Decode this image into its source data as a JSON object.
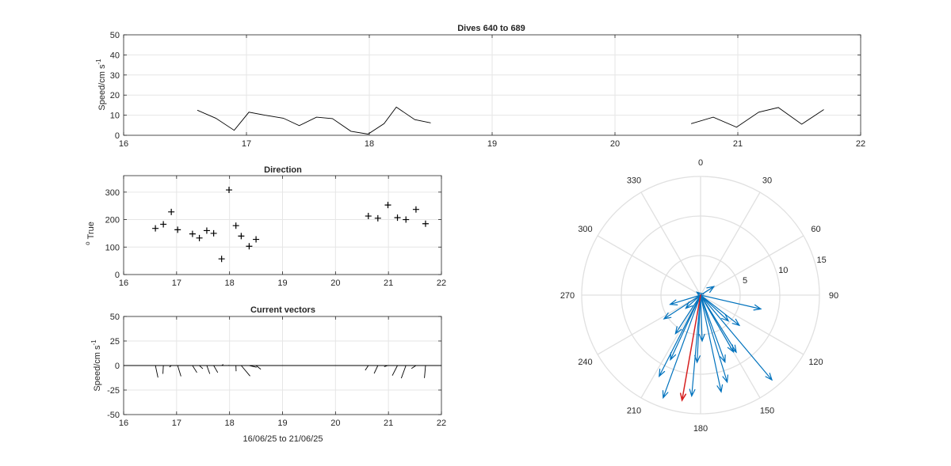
{
  "chart_data": [
    {
      "id": "speed",
      "type": "line",
      "title": "Dives 640 to 689",
      "xlabel": "",
      "ylabel": "Speed/cm s",
      "ylabel_sup": "-1",
      "xlim": [
        16,
        22
      ],
      "ylim": [
        0,
        50
      ],
      "xticks": [
        16,
        17,
        18,
        19,
        20,
        21,
        22
      ],
      "yticks": [
        0,
        10,
        20,
        30,
        40,
        50
      ],
      "grid": true,
      "segments": [
        {
          "x": [
            16.6,
            16.75,
            16.9,
            17.02,
            17.15,
            17.3,
            17.43,
            17.57,
            17.7,
            17.85,
            17.99,
            18.12,
            18.22,
            18.37,
            18.5
          ],
          "y": [
            12.5,
            8.5,
            2.5,
            11.5,
            10,
            8.5,
            4.8,
            9,
            8.3,
            2,
            0.6,
            5.8,
            14,
            7.8,
            6.2
          ]
        },
        {
          "x": [
            20.62,
            20.8,
            20.99,
            21.17,
            21.33,
            21.52,
            21.7
          ],
          "y": [
            5.8,
            9,
            4,
            11.5,
            13.8,
            5.5,
            12.8
          ]
        }
      ]
    },
    {
      "id": "direction",
      "type": "scatter",
      "title": "Direction",
      "xlabel": "",
      "ylabel": "True",
      "ylabel_sup": "o",
      "xlim": [
        16,
        22
      ],
      "ylim": [
        0,
        360
      ],
      "xticks": [
        16,
        17,
        18,
        19,
        20,
        21,
        22
      ],
      "yticks": [
        0,
        100,
        200,
        300
      ],
      "grid": true,
      "marker": "+",
      "x": [
        16.6,
        16.75,
        16.9,
        17.02,
        17.3,
        17.43,
        17.57,
        17.7,
        17.85,
        17.99,
        18.12,
        18.22,
        18.37,
        18.5,
        20.62,
        20.8,
        20.99,
        21.17,
        21.33,
        21.52,
        21.7
      ],
      "y": [
        168,
        183,
        228,
        163,
        148,
        133,
        160,
        150,
        57,
        308,
        178,
        140,
        103,
        128,
        213,
        205,
        253,
        207,
        200,
        237,
        185
      ]
    },
    {
      "id": "vectors",
      "type": "line",
      "title": "Current vectors",
      "xlabel": "16/06/25 to 21/06/25",
      "ylabel": "Speed/cm s",
      "ylabel_sup": "-1",
      "xlim": [
        16,
        22
      ],
      "ylim": [
        -50,
        50
      ],
      "xticks": [
        16,
        17,
        18,
        19,
        20,
        21,
        22
      ],
      "yticks": [
        -50,
        -25,
        0,
        25,
        50
      ],
      "grid": true,
      "baseline": 0
    },
    {
      "id": "rose",
      "type": "polar",
      "title": "",
      "rlim": [
        0,
        15
      ],
      "rticks": [
        5,
        10,
        15
      ],
      "angle_ticks": [
        0,
        30,
        60,
        90,
        120,
        150,
        180,
        210,
        240,
        270,
        300,
        330
      ],
      "orientation": "clockwise from north",
      "colors": {
        "vectors": "#0072bd",
        "mean": "#d62020"
      },
      "mean_vector": {
        "direction": 190,
        "speed": 13.5
      }
    }
  ]
}
